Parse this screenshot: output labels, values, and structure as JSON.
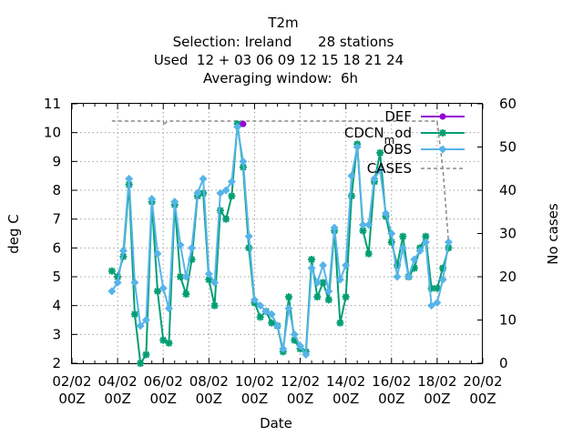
{
  "chart_data": {
    "type": "line",
    "title_lines": [
      "T2m",
      "Selection: Ireland      28 stations",
      "Used  12 + 03 06 09 12 15 18 21 24",
      "Averaging window:  6h"
    ],
    "xlabel": "Date",
    "ylabel": "deg C",
    "y2label": "No cases",
    "x_ticks": [
      {
        "day": 2,
        "label": [
          "02/02",
          "00Z"
        ]
      },
      {
        "day": 4,
        "label": [
          "04/02",
          "00Z"
        ]
      },
      {
        "day": 6,
        "label": [
          "06/02",
          "00Z"
        ]
      },
      {
        "day": 8,
        "label": [
          "08/02",
          "00Z"
        ]
      },
      {
        "day": 10,
        "label": [
          "10/02",
          "00Z"
        ]
      },
      {
        "day": 12,
        "label": [
          "12/02",
          "00Z"
        ]
      },
      {
        "day": 14,
        "label": [
          "14/02",
          "00Z"
        ]
      },
      {
        "day": 16,
        "label": [
          "16/02",
          "00Z"
        ]
      },
      {
        "day": 18,
        "label": [
          "18/02",
          "00Z"
        ]
      },
      {
        "day": 20,
        "label": [
          "20/02",
          "00Z"
        ]
      }
    ],
    "xlim_days": [
      2,
      20
    ],
    "ylim": [
      2,
      11
    ],
    "y_ticks": [
      "2",
      "3",
      "4",
      "5",
      "6",
      "7",
      "8",
      "9",
      "10",
      "11"
    ],
    "y2lim": [
      0,
      60
    ],
    "y2_ticks": [
      "0",
      "10",
      "20",
      "30",
      "40",
      "50",
      "60"
    ],
    "legend_position": "top-right",
    "series": [
      {
        "name": "DEF",
        "color": "#9400d3",
        "marker": "circle",
        "x_days": [
          9.5
        ],
        "y": [
          10.3
        ]
      },
      {
        "name": "CDCN",
        "name_sub": "m",
        "name_suffix": "od",
        "color": "#009e73",
        "marker": "star",
        "x_days": [
          3.75,
          4.0,
          4.25,
          4.5,
          4.75,
          5.0,
          5.25,
          5.5,
          5.75,
          6.0,
          6.25,
          6.5,
          6.75,
          7.0,
          7.25,
          7.5,
          7.75,
          8.0,
          8.25,
          8.5,
          8.75,
          9.0,
          9.25,
          9.5,
          9.75,
          10.0,
          10.25,
          10.5,
          10.75,
          11.0,
          11.25,
          11.5,
          11.75,
          12.0,
          12.25,
          12.5,
          12.75,
          13.0,
          13.25,
          13.5,
          13.75,
          14.0,
          14.25,
          14.5,
          14.75,
          15.0,
          15.25,
          15.5,
          15.75,
          16.0,
          16.25,
          16.5,
          16.75,
          17.0,
          17.25,
          17.5,
          17.75,
          18.0,
          18.25,
          18.5
        ],
        "y": [
          5.2,
          5.0,
          5.7,
          8.2,
          3.7,
          2.0,
          2.3,
          7.6,
          4.5,
          2.8,
          2.7,
          7.5,
          5.0,
          4.4,
          5.6,
          7.8,
          7.9,
          4.9,
          4.0,
          7.3,
          7.0,
          7.8,
          10.3,
          8.8,
          6.0,
          4.1,
          3.6,
          3.8,
          3.4,
          3.3,
          2.4,
          4.3,
          2.8,
          2.5,
          2.4,
          5.6,
          4.3,
          4.8,
          4.2,
          6.6,
          3.4,
          4.3,
          7.8,
          9.6,
          6.6,
          5.8,
          8.3,
          9.3,
          7.1,
          6.2,
          5.4,
          6.4,
          5.0,
          5.3,
          6.0,
          6.4,
          4.6,
          4.6,
          5.3,
          6.0
        ]
      },
      {
        "name": "OBS",
        "color": "#56b4e9",
        "marker": "diamond",
        "x_days": [
          3.75,
          4.0,
          4.25,
          4.5,
          4.75,
          5.0,
          5.25,
          5.5,
          5.75,
          6.0,
          6.25,
          6.5,
          6.75,
          7.0,
          7.25,
          7.5,
          7.75,
          8.0,
          8.25,
          8.5,
          8.75,
          9.0,
          9.25,
          9.5,
          9.75,
          10.0,
          10.25,
          10.5,
          10.75,
          11.0,
          11.25,
          11.5,
          11.75,
          12.0,
          12.25,
          12.5,
          12.75,
          13.0,
          13.25,
          13.5,
          13.75,
          14.0,
          14.25,
          14.5,
          14.75,
          15.0,
          15.25,
          15.5,
          15.75,
          16.0,
          16.25,
          16.5,
          16.75,
          17.0,
          17.25,
          17.5,
          17.75,
          18.0,
          18.25,
          18.5
        ],
        "y": [
          4.5,
          4.8,
          5.9,
          8.4,
          4.8,
          3.3,
          3.5,
          7.7,
          5.8,
          4.6,
          3.9,
          7.6,
          6.1,
          5.0,
          6.0,
          7.9,
          8.4,
          5.1,
          4.8,
          7.9,
          8.0,
          8.3,
          10.2,
          9.0,
          6.4,
          4.2,
          4.0,
          3.8,
          3.7,
          3.3,
          2.5,
          3.9,
          3.0,
          2.6,
          2.3,
          5.3,
          4.8,
          5.4,
          4.5,
          6.7,
          4.9,
          5.4,
          8.5,
          9.5,
          6.8,
          6.8,
          8.4,
          8.7,
          7.2,
          6.5,
          5.0,
          6.0,
          5.0,
          5.6,
          5.9,
          6.2,
          4.0,
          4.1,
          4.9,
          6.2
        ]
      },
      {
        "name": "CASES",
        "color": "#888888",
        "axis": "y2",
        "x_days": [
          3.75,
          6.0,
          6.05,
          6.15,
          6.25,
          14.0,
          14.25,
          18.0,
          18.25,
          18.5
        ],
        "y": [
          56,
          56,
          55,
          56,
          56,
          56,
          56,
          56,
          45,
          28
        ]
      }
    ]
  }
}
